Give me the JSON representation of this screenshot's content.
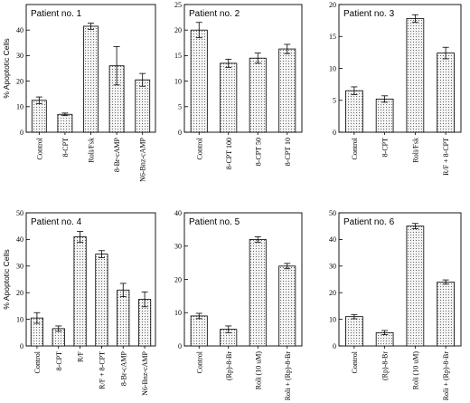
{
  "chart_data": [
    {
      "type": "bar",
      "title": "Patient no. 1",
      "ylabel": "% Apoptotic Cells",
      "ylim": [
        0,
        50
      ],
      "yticks": [
        0,
        10,
        20,
        30,
        40
      ],
      "categories": [
        "Control",
        "8-CPT",
        "Roli/Fsk",
        "8-Br-cAMP",
        "N6-Bnz-cAMP"
      ],
      "values": [
        12.5,
        7.0,
        41.5,
        26.0,
        20.5
      ],
      "errors": [
        1.3,
        0.5,
        1.2,
        7.5,
        2.5
      ]
    },
    {
      "type": "bar",
      "title": "Patient no. 2",
      "ylabel": "",
      "ylim": [
        0,
        25
      ],
      "yticks": [
        0,
        5,
        10,
        15,
        20,
        25
      ],
      "categories": [
        "Control",
        "8-CPT 100",
        "8-CPT 50",
        "8-CPT 10"
      ],
      "values": [
        20.0,
        13.5,
        14.5,
        16.3
      ],
      "errors": [
        1.5,
        0.8,
        1.0,
        0.9
      ]
    },
    {
      "type": "bar",
      "title": "Patient no. 3",
      "ylabel": "",
      "ylim": [
        0,
        20
      ],
      "yticks": [
        0,
        5,
        10,
        15,
        20
      ],
      "categories": [
        "Control",
        "8-CPT",
        "Roli/Fsk",
        "R/F + 8-CPT"
      ],
      "values": [
        6.5,
        5.2,
        17.8,
        12.4
      ],
      "errors": [
        0.6,
        0.5,
        0.6,
        0.9
      ]
    },
    {
      "type": "bar",
      "title": "Patient no. 4",
      "ylabel": "% Apoptotic Cells",
      "ylim": [
        0,
        50
      ],
      "yticks": [
        0,
        10,
        20,
        30,
        40,
        50
      ],
      "categories": [
        "Control",
        "8-CPT",
        "R/F",
        "R/F + 8-CPT",
        "8-Br-cAMP",
        "N6-Bnz-cAMP"
      ],
      "values": [
        10.5,
        6.5,
        41.0,
        34.5,
        21.0,
        17.5
      ],
      "errors": [
        2.0,
        1.0,
        2.0,
        1.3,
        2.5,
        2.8
      ]
    },
    {
      "type": "bar",
      "title": "Patient no. 5",
      "ylabel": "",
      "ylim": [
        0,
        40
      ],
      "yticks": [
        0,
        10,
        20,
        30,
        40
      ],
      "categories": [
        "Control",
        "(Rp)-8-Br",
        "Roli (10 uM)",
        "Roli + (Rp)-8-Br"
      ],
      "values": [
        9.0,
        5.0,
        32.0,
        24.0
      ],
      "errors": [
        0.8,
        1.0,
        0.8,
        0.8
      ]
    },
    {
      "type": "bar",
      "title": "Patient no. 6",
      "ylabel": "",
      "ylim": [
        0,
        50
      ],
      "yticks": [
        0,
        10,
        20,
        30,
        40,
        50
      ],
      "categories": [
        "Control",
        "(Rp)-8-Br",
        "Roli (10 uM)",
        "Roli + (Rp)-8-Br"
      ],
      "values": [
        11.0,
        5.0,
        45.0,
        24.0
      ],
      "errors": [
        0.8,
        0.8,
        1.0,
        0.8
      ]
    }
  ]
}
